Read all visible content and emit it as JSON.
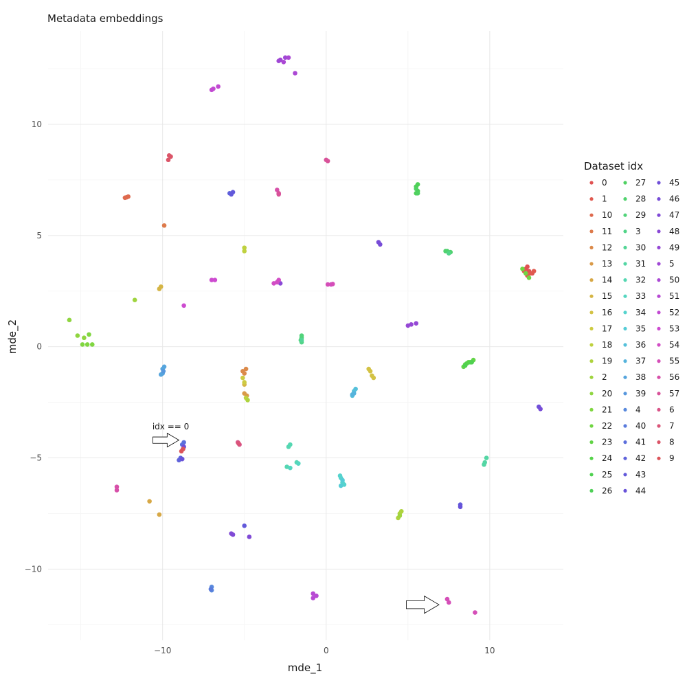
{
  "chart_data": {
    "type": "scatter",
    "title": "Metadata embeddings",
    "xlabel": "mde_1",
    "ylabel": "mde_2",
    "xlim": [
      -17,
      14.5
    ],
    "ylim": [
      -13.2,
      14.2
    ],
    "xticks": [
      -10,
      0,
      10
    ],
    "yticks": [
      -10,
      -5,
      0,
      5,
      10
    ],
    "xtick_labels": [
      "−10",
      "0",
      "10"
    ],
    "ytick_labels": [
      "−10",
      "−5",
      "0",
      "5",
      "10"
    ],
    "grid": true,
    "legend": {
      "title": "Dataset idx",
      "placement": "right"
    },
    "annotation": {
      "text": "idx == 0",
      "x": -9.5,
      "y": -3.6
    },
    "arrows": [
      {
        "x0": -10.6,
        "y0": -4.2,
        "x1": -9.0,
        "y1": -4.2
      },
      {
        "x0": 4.9,
        "y0": -11.6,
        "x1": 6.9,
        "y1": -11.6
      }
    ],
    "series": [
      {
        "name": "0",
        "color": "#e05252",
        "points": [
          [
            12.4,
            3.4
          ],
          [
            12.2,
            3.5
          ],
          [
            12.6,
            3.3
          ],
          [
            12.3,
            3.6
          ]
        ]
      },
      {
        "name": "1",
        "color": "#e05a50",
        "points": [
          [
            12.5,
            3.3
          ],
          [
            12.3,
            3.2
          ],
          [
            12.7,
            3.4
          ],
          [
            12.1,
            3.4
          ]
        ]
      },
      {
        "name": "10",
        "color": "#de6a4e",
        "points": [
          [
            -12.3,
            6.7
          ],
          [
            -12.1,
            6.75
          ],
          [
            -12.2,
            6.72
          ]
        ]
      },
      {
        "name": "11",
        "color": "#dd7a4b",
        "points": [
          [
            -9.9,
            5.45
          ]
        ]
      },
      {
        "name": "12",
        "color": "#db8a4a",
        "points": [
          [
            -5.1,
            -1.1
          ],
          [
            -4.9,
            -1.0
          ],
          [
            -5.0,
            -1.2
          ]
        ]
      },
      {
        "name": "13",
        "color": "#d99a48",
        "points": [
          [
            -5.0,
            -2.1
          ],
          [
            -4.85,
            -2.2
          ]
        ]
      },
      {
        "name": "14",
        "color": "#d7a846",
        "points": [
          [
            -10.8,
            -6.95
          ],
          [
            -10.2,
            -7.55
          ]
        ]
      },
      {
        "name": "15",
        "color": "#d5b545",
        "points": [
          [
            -10.2,
            2.6
          ],
          [
            -10.1,
            2.7
          ],
          [
            -5.0,
            -1.7
          ]
        ]
      },
      {
        "name": "16",
        "color": "#d3c244",
        "points": [
          [
            2.6,
            -1.0
          ],
          [
            2.7,
            -1.1
          ],
          [
            2.8,
            -1.3
          ],
          [
            2.9,
            -1.4
          ]
        ]
      },
      {
        "name": "17",
        "color": "#cdcb42",
        "points": [
          [
            -5.0,
            -1.6
          ],
          [
            -5.1,
            -1.4
          ]
        ]
      },
      {
        "name": "18",
        "color": "#bfd13f",
        "points": [
          [
            -5.0,
            4.3
          ],
          [
            -5.0,
            4.45
          ],
          [
            -4.9,
            -2.3
          ]
        ]
      },
      {
        "name": "19",
        "color": "#aed33e",
        "points": [
          [
            4.5,
            -7.5
          ],
          [
            4.4,
            -7.7
          ],
          [
            4.6,
            -7.4
          ],
          [
            -4.8,
            -2.4
          ]
        ]
      },
      {
        "name": "2",
        "color": "#9fd43f",
        "points": [
          [
            -11.7,
            2.1
          ],
          [
            4.5,
            -7.6
          ]
        ]
      },
      {
        "name": "20",
        "color": "#8fd540",
        "points": [
          [
            -15.7,
            1.2
          ],
          [
            -15.2,
            0.5
          ],
          [
            -14.8,
            0.4
          ]
        ]
      },
      {
        "name": "21",
        "color": "#80d641",
        "points": [
          [
            -14.6,
            0.1
          ],
          [
            -14.3,
            0.1
          ],
          [
            -14.5,
            0.55
          ],
          [
            -14.9,
            0.1
          ]
        ]
      },
      {
        "name": "22",
        "color": "#70d543",
        "points": [
          [
            12.2,
            3.3
          ],
          [
            12.4,
            3.1
          ],
          [
            12.0,
            3.5
          ]
        ]
      },
      {
        "name": "23",
        "color": "#62d446",
        "points": [
          [
            8.5,
            -0.8
          ],
          [
            8.7,
            -0.7
          ],
          [
            9.0,
            -0.6
          ],
          [
            8.4,
            -0.9
          ]
        ]
      },
      {
        "name": "24",
        "color": "#56d34a",
        "points": [
          [
            8.6,
            -0.75
          ],
          [
            8.8,
            -0.7
          ]
        ]
      },
      {
        "name": "25",
        "color": "#4fd150",
        "points": [
          [
            8.5,
            -0.85
          ],
          [
            8.9,
            -0.7
          ]
        ]
      },
      {
        "name": "26",
        "color": "#4fd058",
        "points": [
          [
            5.5,
            7.2
          ],
          [
            5.6,
            7.0
          ],
          [
            5.5,
            6.9
          ],
          [
            5.6,
            7.3
          ]
        ]
      },
      {
        "name": "27",
        "color": "#4fd162",
        "points": [
          [
            5.5,
            7.1
          ],
          [
            5.6,
            6.9
          ]
        ]
      },
      {
        "name": "28",
        "color": "#50d26e",
        "points": [
          [
            7.4,
            4.3
          ],
          [
            7.6,
            4.25
          ],
          [
            7.3,
            4.3
          ]
        ]
      },
      {
        "name": "29",
        "color": "#51d37a",
        "points": [
          [
            -1.5,
            0.4
          ],
          [
            -1.5,
            0.5
          ],
          [
            -1.55,
            0.3
          ]
        ]
      },
      {
        "name": "3",
        "color": "#52d488",
        "points": [
          [
            -1.5,
            0.2
          ],
          [
            7.5,
            4.2
          ]
        ]
      },
      {
        "name": "30",
        "color": "#53d596",
        "points": [
          [
            -1.5,
            0.3
          ]
        ]
      },
      {
        "name": "31",
        "color": "#54d6a4",
        "points": [
          [
            9.7,
            -5.2
          ],
          [
            9.8,
            -5.0
          ],
          [
            9.65,
            -5.3
          ]
        ]
      },
      {
        "name": "32",
        "color": "#55d7b2",
        "points": [
          [
            -2.3,
            -4.5
          ],
          [
            -2.2,
            -4.4
          ],
          [
            -1.8,
            -5.2
          ],
          [
            -2.4,
            -5.4
          ]
        ]
      },
      {
        "name": "33",
        "color": "#55d6c0",
        "points": [
          [
            -1.7,
            -5.25
          ],
          [
            -2.2,
            -5.45
          ]
        ]
      },
      {
        "name": "34",
        "color": "#55d3cd",
        "points": [
          [
            0.9,
            -5.9
          ],
          [
            1.0,
            -6.1
          ],
          [
            1.1,
            -6.2
          ],
          [
            0.85,
            -5.8
          ]
        ]
      },
      {
        "name": "35",
        "color": "#55ccd6",
        "points": [
          [
            1.0,
            -6.0
          ],
          [
            0.9,
            -6.25
          ]
        ]
      },
      {
        "name": "36",
        "color": "#55c0da",
        "points": [
          [
            1.7,
            -2.0
          ],
          [
            1.8,
            -1.9
          ],
          [
            1.6,
            -2.2
          ]
        ]
      },
      {
        "name": "37",
        "color": "#55b3dc",
        "points": [
          [
            1.7,
            -2.1
          ],
          [
            1.6,
            -2.15
          ]
        ]
      },
      {
        "name": "38",
        "color": "#56a5dd",
        "points": [
          [
            -10.0,
            -1.0
          ],
          [
            -10.0,
            -1.2
          ],
          [
            -9.9,
            -0.9
          ],
          [
            -10.1,
            -1.25
          ]
        ]
      },
      {
        "name": "39",
        "color": "#5797dd",
        "points": [
          [
            -9.95,
            -1.1
          ]
        ]
      },
      {
        "name": "4",
        "color": "#5889dd",
        "points": [
          [
            -7.0,
            -10.8
          ],
          [
            -7.0,
            -10.95
          ]
        ]
      },
      {
        "name": "40",
        "color": "#5a7bdc",
        "points": [
          [
            -7.05,
            -10.9
          ]
        ]
      },
      {
        "name": "41",
        "color": "#5c6fdc",
        "points": [
          [
            -8.7,
            -4.3
          ],
          [
            -8.8,
            -4.4
          ],
          [
            -8.75,
            -4.6
          ]
        ]
      },
      {
        "name": "42",
        "color": "#5f63db",
        "points": [
          [
            -8.9,
            -5.0
          ],
          [
            -9.0,
            -5.1
          ],
          [
            -5.9,
            6.9
          ]
        ]
      },
      {
        "name": "43",
        "color": "#6259da",
        "points": [
          [
            -5.8,
            6.85
          ],
          [
            -5.7,
            6.95
          ],
          [
            -5.0,
            -8.05
          ],
          [
            8.2,
            -7.1
          ]
        ]
      },
      {
        "name": "44",
        "color": "#6852d9",
        "points": [
          [
            8.2,
            -7.2
          ],
          [
            -8.8,
            -5.05
          ]
        ]
      },
      {
        "name": "45",
        "color": "#6f4fd8",
        "points": [
          [
            -8.7,
            -4.5
          ],
          [
            13.0,
            -2.7
          ]
        ]
      },
      {
        "name": "46",
        "color": "#774cd7",
        "points": [
          [
            3.3,
            4.6
          ],
          [
            3.2,
            4.7
          ],
          [
            13.1,
            -2.8
          ]
        ]
      },
      {
        "name": "47",
        "color": "#804ad6",
        "points": [
          [
            -5.7,
            -8.45
          ],
          [
            -4.7,
            -8.55
          ],
          [
            -5.8,
            -8.4
          ]
        ]
      },
      {
        "name": "48",
        "color": "#8a49d6",
        "points": [
          [
            -3.0,
            2.9
          ],
          [
            -2.8,
            2.85
          ]
        ]
      },
      {
        "name": "49",
        "color": "#9548d5",
        "points": [
          [
            5.2,
            1.0
          ],
          [
            5.5,
            1.05
          ],
          [
            5.0,
            0.95
          ]
        ]
      },
      {
        "name": "5",
        "color": "#a048d5",
        "points": [
          [
            -2.8,
            12.9
          ],
          [
            -2.5,
            13.0
          ],
          [
            -2.9,
            12.85
          ]
        ]
      },
      {
        "name": "50",
        "color": "#ab48d4",
        "points": [
          [
            -2.6,
            12.8
          ],
          [
            -2.3,
            13.0
          ],
          [
            -1.9,
            12.3
          ]
        ]
      },
      {
        "name": "51",
        "color": "#b749d3",
        "points": [
          [
            -0.8,
            -11.1
          ],
          [
            -0.6,
            -11.2
          ],
          [
            -0.8,
            -11.3
          ]
        ]
      },
      {
        "name": "52",
        "color": "#c24ad2",
        "points": [
          [
            -6.9,
            11.6
          ],
          [
            -6.6,
            11.7
          ],
          [
            -7.0,
            11.55
          ]
        ]
      },
      {
        "name": "53",
        "color": "#cd4bd0",
        "points": [
          [
            -7.0,
            3.0
          ],
          [
            -6.8,
            3.0
          ],
          [
            -8.7,
            1.85
          ]
        ]
      },
      {
        "name": "54",
        "color": "#d24dc5",
        "points": [
          [
            -3.0,
            2.9
          ],
          [
            -3.2,
            2.85
          ],
          [
            -2.9,
            3.0
          ],
          [
            0.3,
            2.8
          ]
        ]
      },
      {
        "name": "55",
        "color": "#d54eb8",
        "points": [
          [
            0.1,
            2.8
          ],
          [
            0.4,
            2.82
          ],
          [
            7.4,
            -11.35
          ],
          [
            7.5,
            -11.5
          ],
          [
            9.1,
            -11.95
          ]
        ]
      },
      {
        "name": "56",
        "color": "#d750a9",
        "points": [
          [
            -12.8,
            -6.3
          ],
          [
            -12.8,
            -6.45
          ],
          [
            -3.0,
            7.05
          ]
        ]
      },
      {
        "name": "57",
        "color": "#d85299",
        "points": [
          [
            -2.9,
            6.9
          ],
          [
            -2.9,
            6.85
          ],
          [
            0.0,
            8.4
          ],
          [
            0.1,
            8.35
          ]
        ]
      },
      {
        "name": "6",
        "color": "#d95488",
        "points": [
          [
            -5.4,
            -4.3
          ],
          [
            -5.3,
            -4.4
          ]
        ]
      },
      {
        "name": "7",
        "color": "#da5578",
        "points": [
          [
            -5.35,
            -4.35
          ]
        ]
      },
      {
        "name": "8",
        "color": "#db5568",
        "points": [
          [
            -9.6,
            8.6
          ],
          [
            -9.65,
            8.4
          ],
          [
            -9.5,
            8.55
          ]
        ]
      },
      {
        "name": "9",
        "color": "#dc5459",
        "points": [
          [
            -8.85,
            -4.7
          ],
          [
            -8.75,
            -4.6
          ]
        ]
      }
    ]
  }
}
